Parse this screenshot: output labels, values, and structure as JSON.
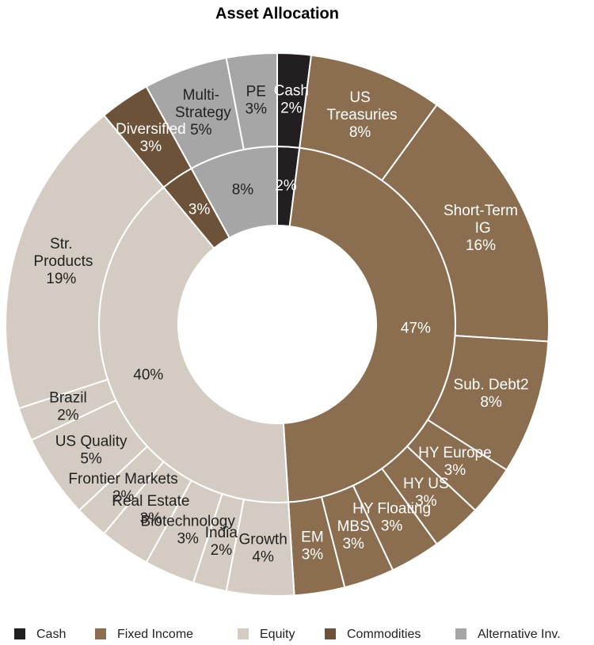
{
  "chart_data": {
    "type": "sunburst",
    "title": "Asset Allocation",
    "groups": [
      {
        "name": "Cash",
        "color": "#231f20",
        "value": 2,
        "value_label": "2%",
        "children": [
          {
            "name": "Cash",
            "value": 2,
            "value_label": "2%"
          }
        ]
      },
      {
        "name": "Fixed Income",
        "color": "#8b6d4f",
        "value": 47,
        "value_label": "47%",
        "children": [
          {
            "name": "US\nTreasuries",
            "value": 8,
            "value_label": "8%"
          },
          {
            "name": "Short-Term\nIG",
            "value": 16,
            "value_label": "16%"
          },
          {
            "name": "Sub. Debt2",
            "value": 8,
            "value_label": "8%"
          },
          {
            "name": "HY Europe",
            "value": 3,
            "value_label": "3%"
          },
          {
            "name": "HY US",
            "value": 3,
            "value_label": "3%"
          },
          {
            "name": "HY Floating",
            "value": 3,
            "value_label": "3%"
          },
          {
            "name": "MBS",
            "value": 3,
            "value_label": "3%"
          },
          {
            "name": "EM",
            "value": 3,
            "value_label": "3%"
          }
        ]
      },
      {
        "name": "Equity",
        "color": "#d4ccc2",
        "value": 40,
        "value_label": "40%",
        "children": [
          {
            "name": "Growth",
            "value": 4,
            "value_label": "4%"
          },
          {
            "name": "India",
            "value": 2,
            "value_label": "2%"
          },
          {
            "name": "Biotechnology",
            "value": 3,
            "value_label": "3%"
          },
          {
            "name": "Real Estate",
            "value": 3,
            "value_label": "3%"
          },
          {
            "name": "Frontier Markets",
            "value": 2,
            "value_label": "2%"
          },
          {
            "name": "US Quality",
            "value": 5,
            "value_label": "5%"
          },
          {
            "name": "Brazil",
            "value": 2,
            "value_label": "2%"
          },
          {
            "name": "Str.\nProducts",
            "value": 19,
            "value_label": "19%"
          }
        ]
      },
      {
        "name": "Commodities",
        "color": "#6b5239",
        "value": 3,
        "value_label": "3%",
        "children": [
          {
            "name": "Diversified",
            "value": 3,
            "value_label": "3%"
          }
        ]
      },
      {
        "name": "Alternative Inv.",
        "color": "#a6a6a6",
        "value": 8,
        "value_label": "8%",
        "children": [
          {
            "name": "Multi-\nStrategy",
            "value": 5,
            "value_label": "5%"
          },
          {
            "name": "PE",
            "value": 3,
            "value_label": "3%"
          }
        ]
      }
    ]
  }
}
